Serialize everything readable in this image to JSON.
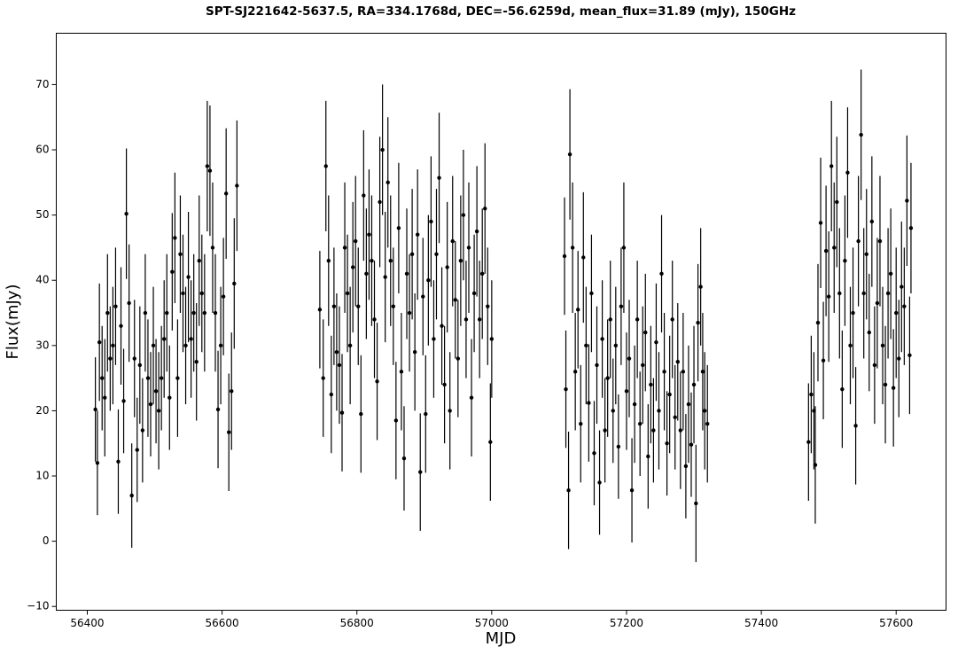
{
  "chart_data": {
    "type": "errorbar",
    "title": "SPT-SJ221642-5637.5, RA=334.1768d, DEC=-56.6259d, mean_flux=31.89 (mJy), 150GHz",
    "x_label": "MJD",
    "y_label": "Flux(mJy)",
    "xlim": [
      56354,
      57674
    ],
    "ylim": [
      -10.58,
      77.87
    ],
    "xticks": [
      56400,
      56600,
      56800,
      57000,
      57200,
      57400,
      57600
    ],
    "yticks": [
      {
        "value": -10,
        "label": "−10"
      },
      0,
      10,
      20,
      30,
      40,
      50,
      60,
      70
    ],
    "grid": false,
    "series": [
      {
        "color": "#000000",
        "x": [
          56412,
          56415,
          56418,
          56422,
          56426,
          56430,
          56434,
          56438,
          56442,
          56446,
          56450,
          56454,
          56458,
          56462,
          56466,
          56470,
          56474,
          56478,
          56482,
          56486,
          56490,
          56494,
          56498,
          56502,
          56506,
          56510,
          56514,
          56518,
          56522,
          56526,
          56530,
          56534,
          56538,
          56542,
          56546,
          56550,
          56554,
          56558,
          56562,
          56566,
          56570,
          56574,
          56578,
          56582,
          56586,
          56590,
          56594,
          56598,
          56602,
          56606,
          56610,
          56614,
          56618,
          56622,
          56745,
          56750,
          56754,
          56758,
          56762,
          56766,
          56770,
          56774,
          56778,
          56782,
          56786,
          56790,
          56794,
          56798,
          56802,
          56806,
          56810,
          56814,
          56818,
          56822,
          56826,
          56830,
          56834,
          56838,
          56842,
          56846,
          56850,
          56854,
          56858,
          56862,
          56866,
          56870,
          56874,
          56878,
          56882,
          56886,
          56890,
          56894,
          56898,
          56902,
          56906,
          56910,
          56914,
          56918,
          56922,
          56926,
          56930,
          56934,
          56938,
          56942,
          56946,
          56950,
          56954,
          56958,
          56962,
          56966,
          56970,
          56974,
          56978,
          56982,
          56986,
          56990,
          56994,
          56998,
          57000,
          57108,
          57110,
          57114,
          57116,
          57120,
          57124,
          57128,
          57132,
          57136,
          57140,
          57144,
          57148,
          57152,
          57156,
          57160,
          57164,
          57168,
          57172,
          57176,
          57180,
          57184,
          57188,
          57192,
          57196,
          57200,
          57204,
          57208,
          57212,
          57216,
          57220,
          57224,
          57228,
          57232,
          57236,
          57240,
          57244,
          57248,
          57252,
          57256,
          57260,
          57264,
          57268,
          57272,
          57276,
          57280,
          57284,
          57288,
          57292,
          57296,
          57300,
          57303,
          57306,
          57310,
          57313,
          57316,
          57320,
          57470,
          57474,
          57478,
          57480,
          57484,
          57488,
          57492,
          57496,
          57500,
          57504,
          57508,
          57512,
          57516,
          57520,
          57524,
          57528,
          57532,
          57536,
          57540,
          57544,
          57548,
          57552,
          57556,
          57560,
          57564,
          57568,
          57572,
          57576,
          57580,
          57584,
          57588,
          57592,
          57596,
          57600,
          57604,
          57608,
          57612,
          57616,
          57620,
          57622
        ],
        "values": [
          20.2,
          12,
          30.5,
          25,
          22,
          35,
          28,
          30,
          36,
          12.2,
          33,
          21.5,
          50.2,
          36.5,
          7,
          28,
          14,
          27,
          17,
          35,
          25,
          21,
          30,
          23,
          20,
          25,
          31,
          35,
          22,
          41.3,
          46.5,
          25,
          44,
          38,
          30,
          40.5,
          31,
          35,
          27.5,
          43,
          38,
          35,
          57.5,
          56.8,
          45,
          35,
          20.2,
          30,
          37.5,
          53.3,
          16.7,
          23,
          39.5,
          54.5,
          35.5,
          25,
          57.5,
          43,
          22.5,
          36,
          29,
          27,
          19.7,
          45,
          38,
          30,
          42,
          46,
          36,
          19.5,
          53,
          41,
          47,
          43,
          34,
          24.5,
          52,
          60,
          40.5,
          55,
          43,
          36,
          18.5,
          48,
          26,
          12.7,
          41,
          35,
          44,
          29,
          47,
          10.6,
          37.5,
          19.5,
          40,
          49,
          31,
          44,
          55.7,
          33,
          24,
          42,
          20,
          46,
          37,
          28,
          43,
          50,
          34,
          45,
          22,
          38,
          47.5,
          34,
          41,
          51,
          36,
          15.2,
          31,
          43.7,
          23.3,
          7.8,
          59.3,
          45,
          26,
          35.5,
          18,
          43.5,
          30,
          21.2,
          38,
          13.5,
          27,
          9,
          31,
          17,
          25,
          34,
          20,
          30,
          14.5,
          36,
          45,
          23,
          28,
          7.8,
          21,
          34,
          18,
          27,
          32,
          13,
          24,
          17,
          30.5,
          20,
          41,
          26,
          15,
          22.5,
          34,
          19,
          27.5,
          17,
          26,
          11.5,
          21,
          14.8,
          24,
          5.8,
          33.5,
          39,
          26,
          20,
          18,
          15.2,
          22.5,
          20,
          11.7,
          33.5,
          48.8,
          27.7,
          44.5,
          37.5,
          57.5,
          45,
          52,
          38,
          23.3,
          43,
          56.5,
          30,
          35,
          17.7,
          46,
          62.3,
          38,
          44,
          32,
          49,
          27,
          36.5,
          46,
          30,
          24,
          38,
          41,
          23.5,
          35,
          28,
          39,
          36,
          52.2,
          28.5,
          48
        ],
        "errors": [
          8,
          8,
          9,
          8,
          9,
          9,
          8,
          9,
          9,
          8,
          9,
          8,
          10,
          9,
          8,
          9,
          8,
          9,
          8,
          9,
          9,
          8,
          9,
          8,
          9,
          8,
          9,
          9,
          8,
          9,
          10,
          9,
          9,
          9,
          9,
          10,
          9,
          9,
          9,
          10,
          9,
          9,
          10,
          10,
          10,
          9,
          9,
          9,
          9,
          10,
          9,
          9,
          10,
          10,
          9,
          9,
          10,
          10,
          9,
          9,
          9,
          9,
          9,
          10,
          9,
          9,
          10,
          10,
          9,
          9,
          10,
          10,
          10,
          10,
          9,
          9,
          10,
          10,
          10,
          10,
          10,
          9,
          9,
          10,
          9,
          8,
          10,
          9,
          10,
          9,
          10,
          9,
          9,
          9,
          10,
          10,
          9,
          10,
          10,
          9,
          9,
          10,
          9,
          10,
          9,
          9,
          10,
          10,
          9,
          10,
          9,
          9,
          10,
          9,
          10,
          10,
          9,
          9,
          9,
          9,
          9,
          9,
          10,
          10,
          9,
          9,
          9,
          10,
          9,
          9,
          9,
          8,
          9,
          8,
          9,
          8,
          9,
          9,
          8,
          9,
          8,
          9,
          10,
          9,
          9,
          8,
          9,
          9,
          8,
          9,
          9,
          8,
          9,
          8,
          9,
          9,
          9,
          9,
          8,
          9,
          9,
          8,
          9,
          9,
          9,
          8,
          9,
          8,
          9,
          9,
          9,
          9,
          9,
          9,
          9,
          9,
          9,
          9,
          9,
          9,
          10,
          9,
          10,
          10,
          10,
          10,
          10,
          10,
          9,
          10,
          10,
          9,
          10,
          9,
          10,
          10,
          10,
          10,
          9,
          10,
          9,
          10,
          10,
          9,
          9,
          10,
          10,
          9,
          10,
          9,
          10,
          9,
          10,
          9,
          10
        ]
      }
    ]
  }
}
